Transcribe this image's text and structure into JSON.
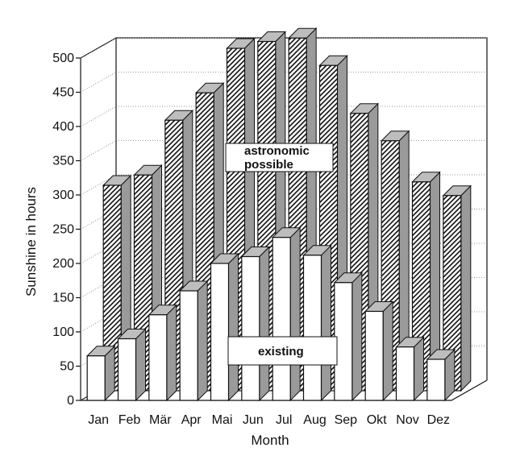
{
  "chart_data": {
    "type": "bar",
    "categories": [
      "Jan",
      "Feb",
      "Mär",
      "Apr",
      "Mai",
      "Jun",
      "Jul",
      "Aug",
      "Sep",
      "Okt",
      "Nov",
      "Dez"
    ],
    "series": [
      {
        "name": "astronomic possible",
        "values": [
          300,
          315,
          395,
          435,
          500,
          510,
          515,
          475,
          405,
          365,
          305,
          285
        ],
        "pattern": "diagonal-hatch"
      },
      {
        "name": "existing",
        "values": [
          65,
          90,
          125,
          160,
          200,
          210,
          238,
          212,
          172,
          130,
          78,
          60
        ],
        "pattern": "white"
      }
    ],
    "xlabel": "Month",
    "ylabel": "Sunshine in hours",
    "ylim": [
      0,
      500
    ],
    "yticks": [
      0,
      50,
      100,
      150,
      200,
      250,
      300,
      350,
      400,
      450,
      500
    ],
    "grid": "horizontal-dotted",
    "style": "3d-bars",
    "annotations": {
      "back_series_line1": "astronomic",
      "back_series_line2": "possible",
      "front_series": "existing"
    },
    "colors": {
      "bar_front": "#ffffff",
      "bar_side": "#9a9a9a",
      "bar_top": "#bdbdbd",
      "outline": "#111111"
    }
  }
}
